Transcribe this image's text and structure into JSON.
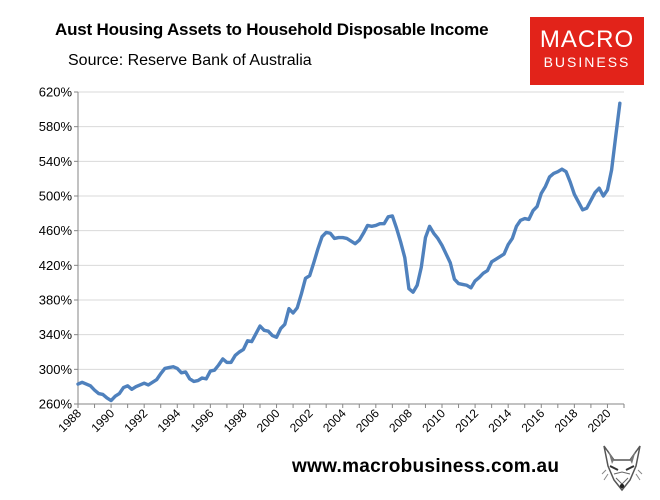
{
  "header": {
    "title": "Aust Housing Assets to Household Disposable Income",
    "subtitle": "Source: Reserve Bank of Australia"
  },
  "logo": {
    "line1": "MACRO",
    "line2": "BUSINESS",
    "color": "#e2231a"
  },
  "footer": {
    "url": "www.macrobusiness.com.au",
    "icon": "fox-head-icon"
  },
  "chart_data": {
    "type": "line",
    "title": "Aust Housing Assets to Household Disposable Income",
    "xlabel": "",
    "ylabel": "",
    "xlim": [
      1988,
      2021
    ],
    "ylim": [
      260,
      620
    ],
    "y_ticks": [
      260,
      300,
      340,
      380,
      420,
      460,
      500,
      540,
      580,
      620
    ],
    "y_tick_labels": [
      "260%",
      "300%",
      "340%",
      "380%",
      "420%",
      "460%",
      "500%",
      "540%",
      "580%",
      "620%"
    ],
    "x_ticks": [
      "1988",
      "1990",
      "1992",
      "1994",
      "1996",
      "1998",
      "2000",
      "2002",
      "2004",
      "2006",
      "2008",
      "2010",
      "2012",
      "2014",
      "2016",
      "2018",
      "2020"
    ],
    "grid": "horizontal",
    "legend": "none",
    "series": [
      {
        "color": "#4f81bd",
        "x": [
          1988.0,
          1988.25,
          1988.5,
          1988.75,
          1989.0,
          1989.25,
          1989.5,
          1989.75,
          1990.0,
          1990.25,
          1990.5,
          1990.75,
          1991.0,
          1991.25,
          1991.5,
          1991.75,
          1992.0,
          1992.25,
          1992.5,
          1992.75,
          1993.0,
          1993.25,
          1993.5,
          1993.75,
          1994.0,
          1994.25,
          1994.5,
          1994.75,
          1995.0,
          1995.25,
          1995.5,
          1995.75,
          1996.0,
          1996.25,
          1996.5,
          1996.75,
          1997.0,
          1997.25,
          1997.5,
          1997.75,
          1998.0,
          1998.25,
          1998.5,
          1998.75,
          1999.0,
          1999.25,
          1999.5,
          1999.75,
          2000.0,
          2000.25,
          2000.5,
          2000.75,
          2001.0,
          2001.25,
          2001.5,
          2001.75,
          2002.0,
          2002.25,
          2002.5,
          2002.75,
          2003.0,
          2003.25,
          2003.5,
          2003.75,
          2004.0,
          2004.25,
          2004.5,
          2004.75,
          2005.0,
          2005.25,
          2005.5,
          2005.75,
          2006.0,
          2006.25,
          2006.5,
          2006.75,
          2007.0,
          2007.25,
          2007.5,
          2007.75,
          2008.0,
          2008.25,
          2008.5,
          2008.75,
          2009.0,
          2009.25,
          2009.5,
          2009.75,
          2010.0,
          2010.25,
          2010.5,
          2010.75,
          2011.0,
          2011.25,
          2011.5,
          2011.75,
          2012.0,
          2012.25,
          2012.5,
          2012.75,
          2013.0,
          2013.25,
          2013.5,
          2013.75,
          2014.0,
          2014.25,
          2014.5,
          2014.75,
          2015.0,
          2015.25,
          2015.5,
          2015.75,
          2016.0,
          2016.25,
          2016.5,
          2016.75,
          2017.0,
          2017.25,
          2017.5,
          2017.75,
          2018.0,
          2018.25,
          2018.5,
          2018.75,
          2019.0,
          2019.25,
          2019.5,
          2019.75,
          2020.0,
          2020.25,
          2020.5,
          2020.75
        ],
        "y": [
          283,
          285,
          283,
          281,
          276,
          272,
          271,
          267,
          264,
          269,
          272,
          279,
          281,
          277,
          280,
          282,
          284,
          282,
          285,
          288,
          295,
          301,
          302,
          303,
          301,
          296,
          297,
          289,
          286,
          287,
          290,
          289,
          298,
          299,
          305,
          312,
          308,
          308,
          316,
          320,
          323,
          333,
          332,
          341,
          350,
          345,
          344,
          339,
          337,
          347,
          352,
          370,
          365,
          371,
          387,
          405,
          408,
          423,
          439,
          453,
          458,
          457,
          451,
          452,
          452,
          451,
          448,
          445,
          449,
          457,
          466,
          465,
          466,
          468,
          468,
          476,
          477,
          463,
          447,
          429,
          393,
          389,
          397,
          418,
          452,
          465,
          457,
          451,
          443,
          433,
          423,
          404,
          399,
          398,
          397,
          394,
          402,
          406,
          411,
          414,
          424,
          427,
          430,
          433,
          444,
          451,
          465,
          472,
          474,
          473,
          483,
          488,
          503,
          511,
          522,
          526,
          528,
          531,
          528,
          516,
          502,
          493,
          484,
          486,
          495,
          504,
          509,
          500,
          507,
          530,
          569,
          607
        ]
      }
    ]
  }
}
